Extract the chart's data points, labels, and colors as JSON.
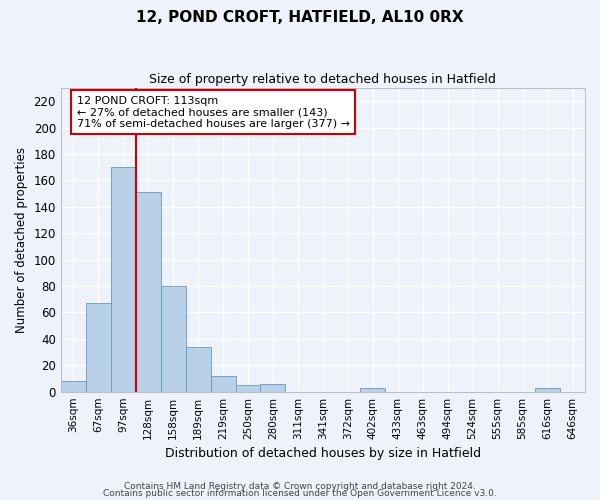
{
  "title": "12, POND CROFT, HATFIELD, AL10 0RX",
  "subtitle": "Size of property relative to detached houses in Hatfield",
  "xlabel": "Distribution of detached houses by size in Hatfield",
  "ylabel": "Number of detached properties",
  "categories": [
    "36sqm",
    "67sqm",
    "97sqm",
    "128sqm",
    "158sqm",
    "189sqm",
    "219sqm",
    "250sqm",
    "280sqm",
    "311sqm",
    "341sqm",
    "372sqm",
    "402sqm",
    "433sqm",
    "463sqm",
    "494sqm",
    "524sqm",
    "555sqm",
    "585sqm",
    "616sqm",
    "646sqm"
  ],
  "values": [
    8,
    67,
    170,
    151,
    80,
    34,
    12,
    5,
    6,
    0,
    0,
    0,
    3,
    0,
    0,
    0,
    0,
    0,
    0,
    3,
    0
  ],
  "bar_color": "#b8d0e8",
  "bar_edge_color": "#6899c0",
  "bar_edge_width": 0.6,
  "red_line_x": 2.5,
  "red_line_color": "#cc0000",
  "annotation_text": "12 POND CROFT: 113sqm\n← 27% of detached houses are smaller (143)\n71% of semi-detached houses are larger (377) →",
  "ylim": [
    0,
    230
  ],
  "yticks": [
    0,
    20,
    40,
    60,
    80,
    100,
    120,
    140,
    160,
    180,
    200,
    220
  ],
  "background_color": "#eef2fb",
  "grid_color": "#ffffff",
  "footer1": "Contains HM Land Registry data © Crown copyright and database right 2024.",
  "footer2": "Contains public sector information licensed under the Open Government Licence v3.0."
}
